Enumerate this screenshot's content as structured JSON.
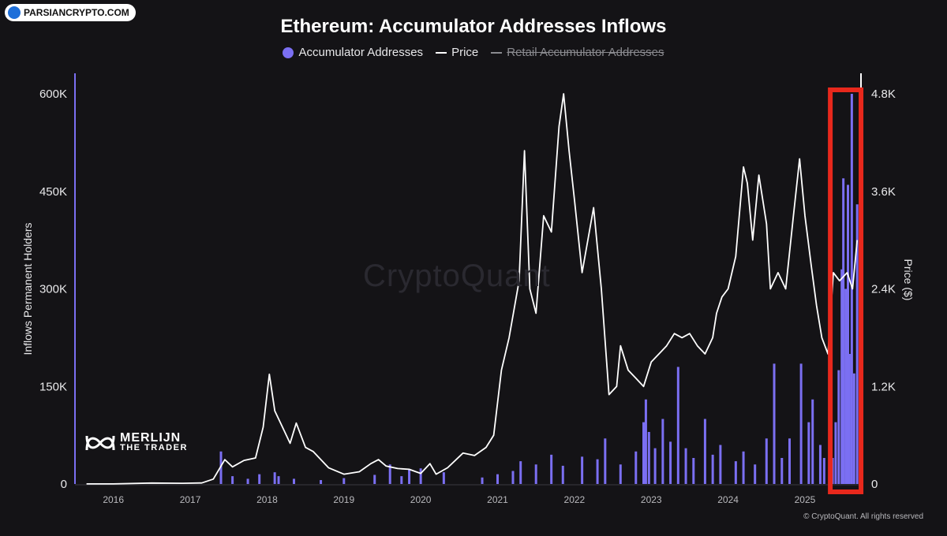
{
  "badge": {
    "text": "PARSIANCRYPTO.COM"
  },
  "title": "Ethereum: Accumulator Addresses Inflows",
  "legend": [
    {
      "label": "Accumulator Addresses",
      "color": "#7b6ff2",
      "marker": "dot",
      "enabled": true
    },
    {
      "label": "Price",
      "color": "#ffffff",
      "marker": "line",
      "enabled": true
    },
    {
      "label": "Retail Accumulator Addresses",
      "color": "#8b8b90",
      "marker": "line",
      "enabled": false
    }
  ],
  "watermark": "CryptoQuant",
  "brand": {
    "name": "MERLIJN",
    "sub": "THE TRADER"
  },
  "footer": "© CryptoQuant. All rights reserved",
  "highlight": {
    "color": "#e8281c",
    "x_start": 2025.33,
    "x_end": 2025.73
  },
  "chart_data": {
    "type": "bar+line",
    "xlim": [
      2015.5,
      2025.75
    ],
    "x_ticks": [
      "2016",
      "2017",
      "2018",
      "2019",
      "2020",
      "2021",
      "2022",
      "2023",
      "2024",
      "2025"
    ],
    "left_axis": {
      "label": "Inflows Permanent Holders",
      "ylim": [
        0,
        600000
      ],
      "ticks": [
        "0",
        "150K",
        "300K",
        "450K",
        "600K"
      ]
    },
    "right_axis": {
      "label": "Price ($)",
      "ylim": [
        0,
        4800
      ],
      "ticks": [
        "0",
        "1.2K",
        "2.4K",
        "3.6K",
        "4.8K"
      ]
    },
    "grid": false,
    "series": [
      {
        "name": "Accumulator Addresses",
        "type": "bar",
        "axis": "left",
        "color": "#7b6ff2",
        "points": [
          [
            2017.4,
            50000
          ],
          [
            2017.55,
            12000
          ],
          [
            2017.75,
            8000
          ],
          [
            2017.9,
            15000
          ],
          [
            2018.1,
            18000
          ],
          [
            2018.15,
            12000
          ],
          [
            2018.35,
            8000
          ],
          [
            2018.7,
            6000
          ],
          [
            2019.0,
            9000
          ],
          [
            2019.4,
            14000
          ],
          [
            2019.6,
            30000
          ],
          [
            2019.75,
            12000
          ],
          [
            2019.85,
            22000
          ],
          [
            2020.0,
            24000
          ],
          [
            2020.3,
            18000
          ],
          [
            2020.8,
            10000
          ],
          [
            2021.0,
            15000
          ],
          [
            2021.2,
            20000
          ],
          [
            2021.3,
            35000
          ],
          [
            2021.5,
            30000
          ],
          [
            2021.7,
            45000
          ],
          [
            2021.85,
            28000
          ],
          [
            2022.1,
            42000
          ],
          [
            2022.3,
            38000
          ],
          [
            2022.4,
            70000
          ],
          [
            2022.6,
            30000
          ],
          [
            2022.8,
            50000
          ],
          [
            2022.9,
            95000
          ],
          [
            2022.93,
            130000
          ],
          [
            2022.97,
            80000
          ],
          [
            2023.05,
            55000
          ],
          [
            2023.15,
            100000
          ],
          [
            2023.25,
            65000
          ],
          [
            2023.35,
            180000
          ],
          [
            2023.45,
            55000
          ],
          [
            2023.55,
            40000
          ],
          [
            2023.7,
            100000
          ],
          [
            2023.8,
            45000
          ],
          [
            2023.9,
            60000
          ],
          [
            2024.1,
            35000
          ],
          [
            2024.2,
            50000
          ],
          [
            2024.35,
            30000
          ],
          [
            2024.5,
            70000
          ],
          [
            2024.6,
            185000
          ],
          [
            2024.7,
            40000
          ],
          [
            2024.8,
            70000
          ],
          [
            2024.95,
            185000
          ],
          [
            2025.05,
            95000
          ],
          [
            2025.1,
            130000
          ],
          [
            2025.2,
            60000
          ],
          [
            2025.25,
            40000
          ],
          [
            2025.32,
            20000
          ],
          [
            2025.36,
            40000
          ],
          [
            2025.4,
            95000
          ],
          [
            2025.44,
            175000
          ],
          [
            2025.48,
            330000
          ],
          [
            2025.5,
            470000
          ],
          [
            2025.53,
            300000
          ],
          [
            2025.56,
            460000
          ],
          [
            2025.58,
            200000
          ],
          [
            2025.61,
            600000
          ],
          [
            2025.64,
            170000
          ],
          [
            2025.68,
            430000
          ]
        ]
      },
      {
        "name": "Price",
        "type": "line",
        "axis": "right",
        "color": "#ffffff",
        "points": [
          [
            2015.65,
            1
          ],
          [
            2016.0,
            1
          ],
          [
            2016.5,
            12
          ],
          [
            2016.9,
            9
          ],
          [
            2017.15,
            13
          ],
          [
            2017.3,
            60
          ],
          [
            2017.45,
            300
          ],
          [
            2017.55,
            210
          ],
          [
            2017.7,
            290
          ],
          [
            2017.85,
            320
          ],
          [
            2017.95,
            700
          ],
          [
            2018.03,
            1350
          ],
          [
            2018.1,
            900
          ],
          [
            2018.2,
            700
          ],
          [
            2018.3,
            500
          ],
          [
            2018.38,
            750
          ],
          [
            2018.5,
            450
          ],
          [
            2018.6,
            400
          ],
          [
            2018.8,
            200
          ],
          [
            2019.0,
            120
          ],
          [
            2019.2,
            150
          ],
          [
            2019.35,
            250
          ],
          [
            2019.45,
            300
          ],
          [
            2019.55,
            220
          ],
          [
            2019.7,
            190
          ],
          [
            2019.85,
            180
          ],
          [
            2020.0,
            130
          ],
          [
            2020.12,
            250
          ],
          [
            2020.2,
            120
          ],
          [
            2020.35,
            200
          ],
          [
            2020.55,
            380
          ],
          [
            2020.7,
            350
          ],
          [
            2020.85,
            450
          ],
          [
            2020.95,
            600
          ],
          [
            2021.05,
            1400
          ],
          [
            2021.15,
            1800
          ],
          [
            2021.28,
            2500
          ],
          [
            2021.35,
            4100
          ],
          [
            2021.42,
            2400
          ],
          [
            2021.5,
            2100
          ],
          [
            2021.6,
            3300
          ],
          [
            2021.7,
            3100
          ],
          [
            2021.8,
            4400
          ],
          [
            2021.86,
            4800
          ],
          [
            2021.93,
            4100
          ],
          [
            2022.0,
            3500
          ],
          [
            2022.1,
            2600
          ],
          [
            2022.25,
            3400
          ],
          [
            2022.35,
            2400
          ],
          [
            2022.45,
            1100
          ],
          [
            2022.55,
            1200
          ],
          [
            2022.6,
            1700
          ],
          [
            2022.7,
            1400
          ],
          [
            2022.8,
            1300
          ],
          [
            2022.9,
            1200
          ],
          [
            2023.0,
            1500
          ],
          [
            2023.1,
            1600
          ],
          [
            2023.2,
            1700
          ],
          [
            2023.3,
            1850
          ],
          [
            2023.4,
            1800
          ],
          [
            2023.5,
            1850
          ],
          [
            2023.6,
            1700
          ],
          [
            2023.7,
            1600
          ],
          [
            2023.8,
            1800
          ],
          [
            2023.85,
            2100
          ],
          [
            2023.92,
            2300
          ],
          [
            2024.0,
            2400
          ],
          [
            2024.1,
            2800
          ],
          [
            2024.2,
            3900
          ],
          [
            2024.25,
            3700
          ],
          [
            2024.32,
            3000
          ],
          [
            2024.4,
            3800
          ],
          [
            2024.5,
            3200
          ],
          [
            2024.55,
            2400
          ],
          [
            2024.65,
            2600
          ],
          [
            2024.75,
            2400
          ],
          [
            2024.85,
            3300
          ],
          [
            2024.93,
            4000
          ],
          [
            2025.0,
            3300
          ],
          [
            2025.08,
            2700
          ],
          [
            2025.15,
            2200
          ],
          [
            2025.22,
            1800
          ],
          [
            2025.3,
            1600
          ],
          [
            2025.37,
            2600
          ],
          [
            2025.45,
            2500
          ],
          [
            2025.55,
            2600
          ],
          [
            2025.62,
            2400
          ],
          [
            2025.68,
            3000
          ]
        ]
      }
    ]
  }
}
